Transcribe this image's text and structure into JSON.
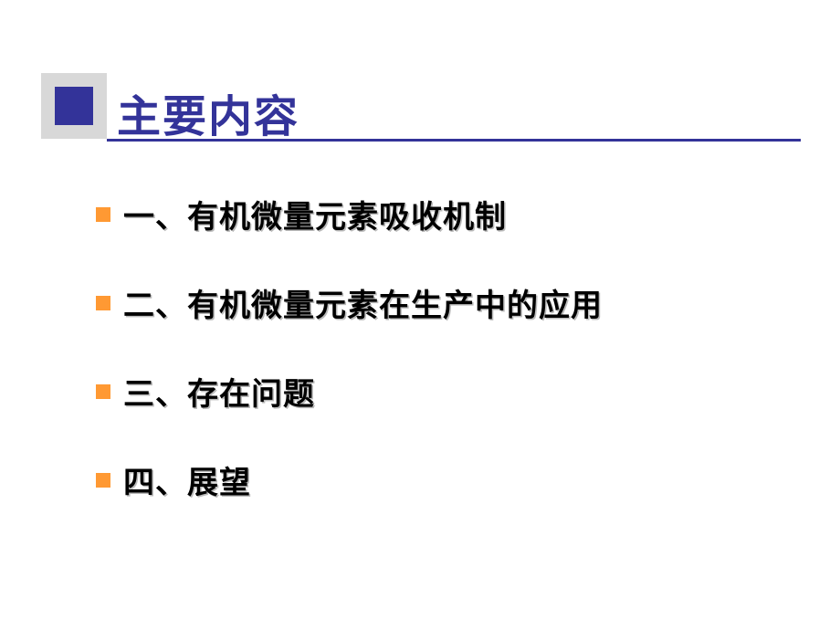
{
  "slide": {
    "title": "主要内容",
    "title_color": "#333399",
    "title_fontsize": 48,
    "accent_box_color": "#333399",
    "accent_shadow_color": "#d8d8d8",
    "line_color": "#333399",
    "bullet_color": "#ff9933",
    "text_color": "#000000",
    "text_shadow_color": "#bbbbbb",
    "item_fontsize": 34,
    "background_color": "#ffffff",
    "items": [
      "一、有机微量元素吸收机制",
      "二、有机微量元素在生产中的应用",
      "三、存在问题",
      "四、展望"
    ]
  }
}
